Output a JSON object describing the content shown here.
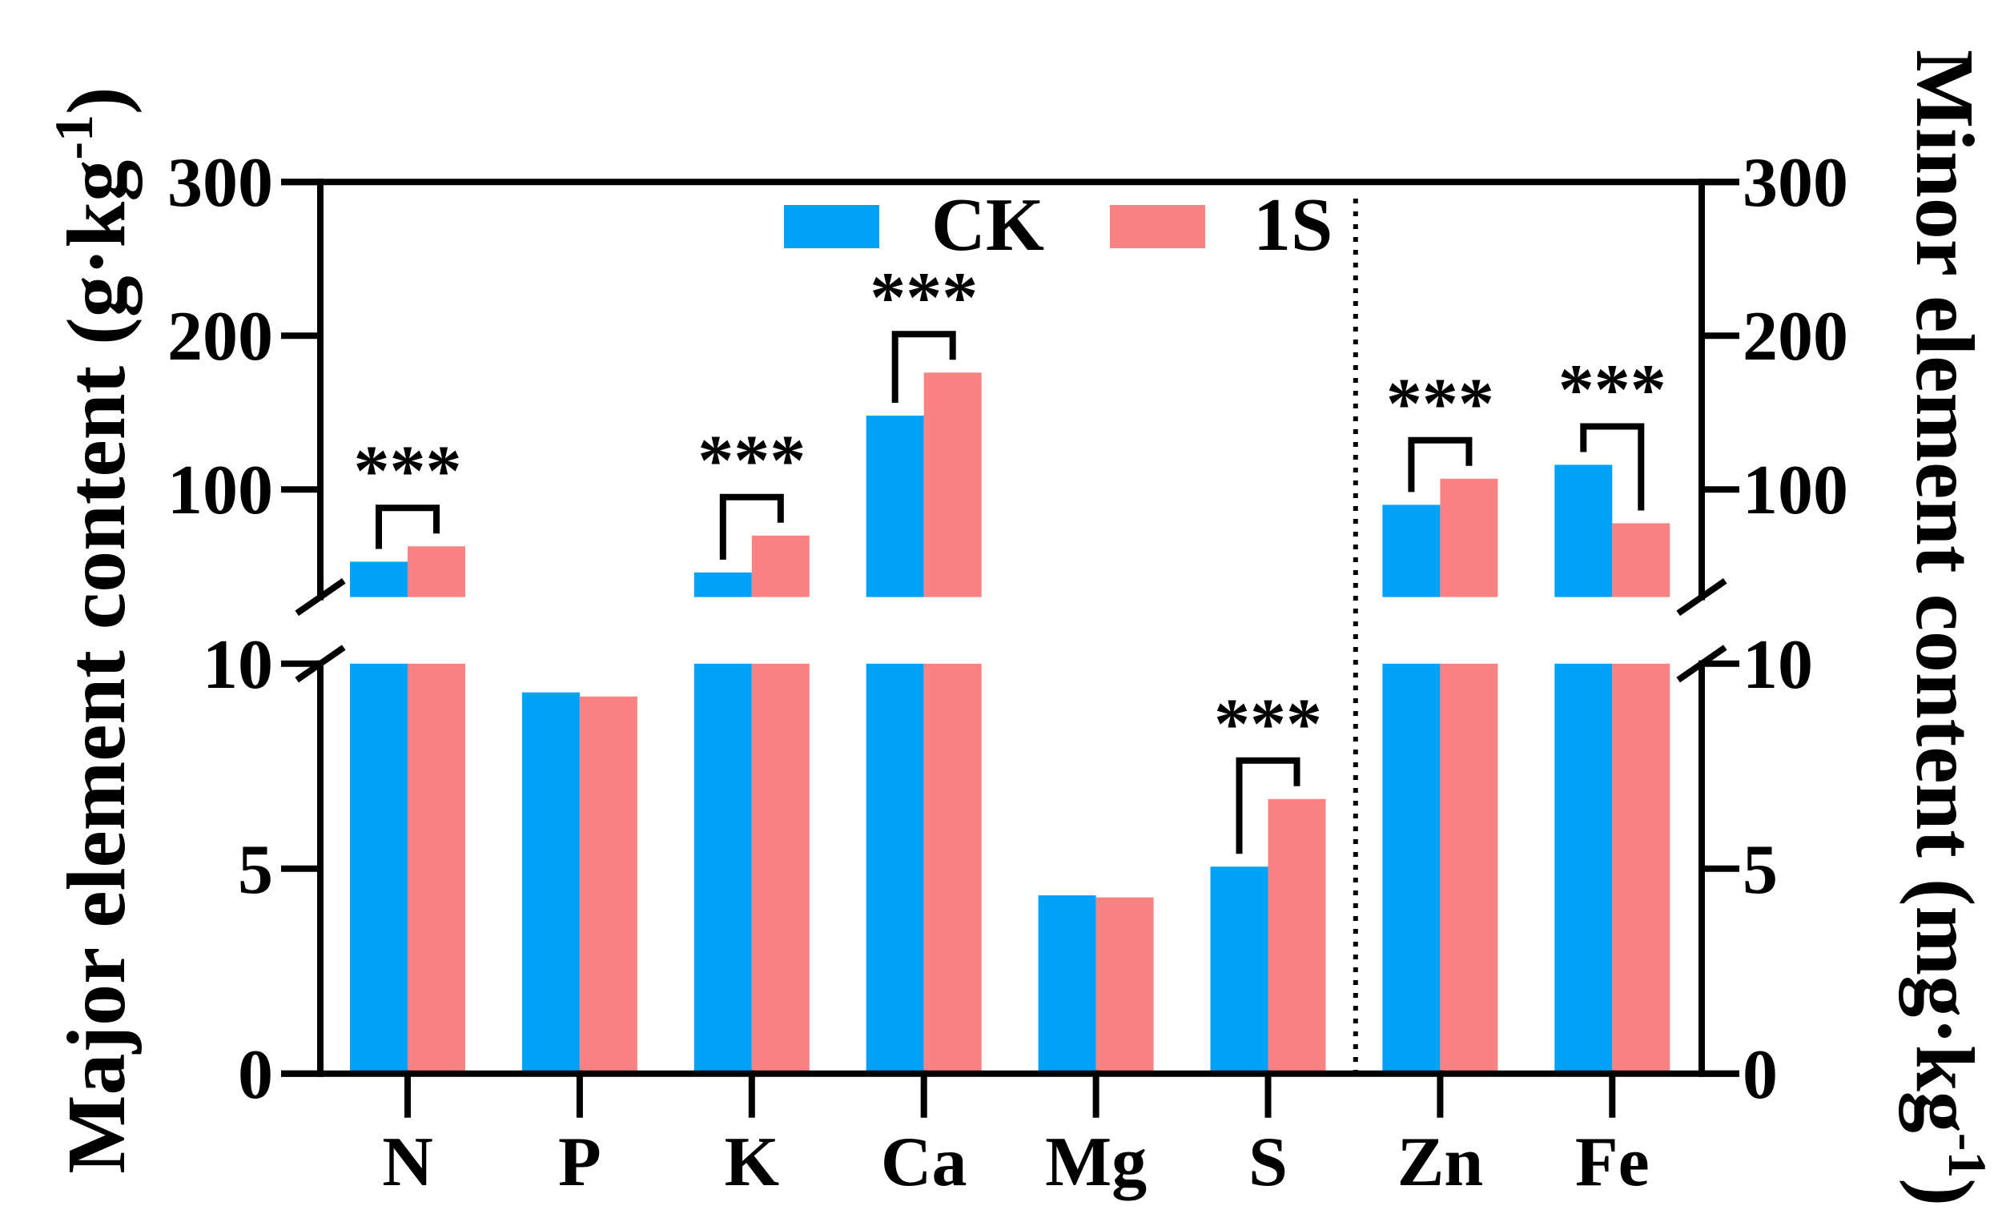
{
  "chart_data": {
    "type": "bar",
    "title": "",
    "xlabel": "",
    "categories": [
      "N",
      "P",
      "K",
      "Ca",
      "Mg",
      "S",
      "Zn",
      "Fe"
    ],
    "left_axis_categories": [
      "N",
      "P",
      "K",
      "Ca",
      "Mg",
      "S"
    ],
    "right_axis_categories": [
      "Zn",
      "Fe"
    ],
    "series": [
      {
        "name": "CK",
        "color": "#00A2F8",
        "values": [
          53,
          9.3,
          46,
          148,
          4.35,
          5.05,
          90,
          116
        ]
      },
      {
        "name": "1S",
        "color": "#F98383",
        "values": [
          63,
          9.2,
          70,
          176,
          4.3,
          6.7,
          107,
          78
        ]
      }
    ],
    "ylabel_left": {
      "main": "Major element content (g·kg",
      "sup": "-1",
      "close": ")"
    },
    "ylabel_right": {
      "main": "Minor element content (mg·kg",
      "sup": "-1",
      "close": ")"
    },
    "y_axis": {
      "broken": true,
      "lower_range": [
        0,
        10
      ],
      "upper_range": [
        30,
        300
      ],
      "lower_ticks": [
        0,
        5,
        10
      ],
      "upper_ticks": [
        100,
        200,
        300
      ]
    },
    "significance": [
      {
        "category": "N",
        "label": "***"
      },
      {
        "category": "K",
        "label": "***"
      },
      {
        "category": "Ca",
        "label": "***"
      },
      {
        "category": "S",
        "label": "***"
      },
      {
        "category": "Zn",
        "label": "***"
      },
      {
        "category": "Fe",
        "label": "***"
      }
    ],
    "legend": {
      "position": "top-center",
      "entries": [
        "CK",
        "1S"
      ]
    },
    "grid": false
  }
}
